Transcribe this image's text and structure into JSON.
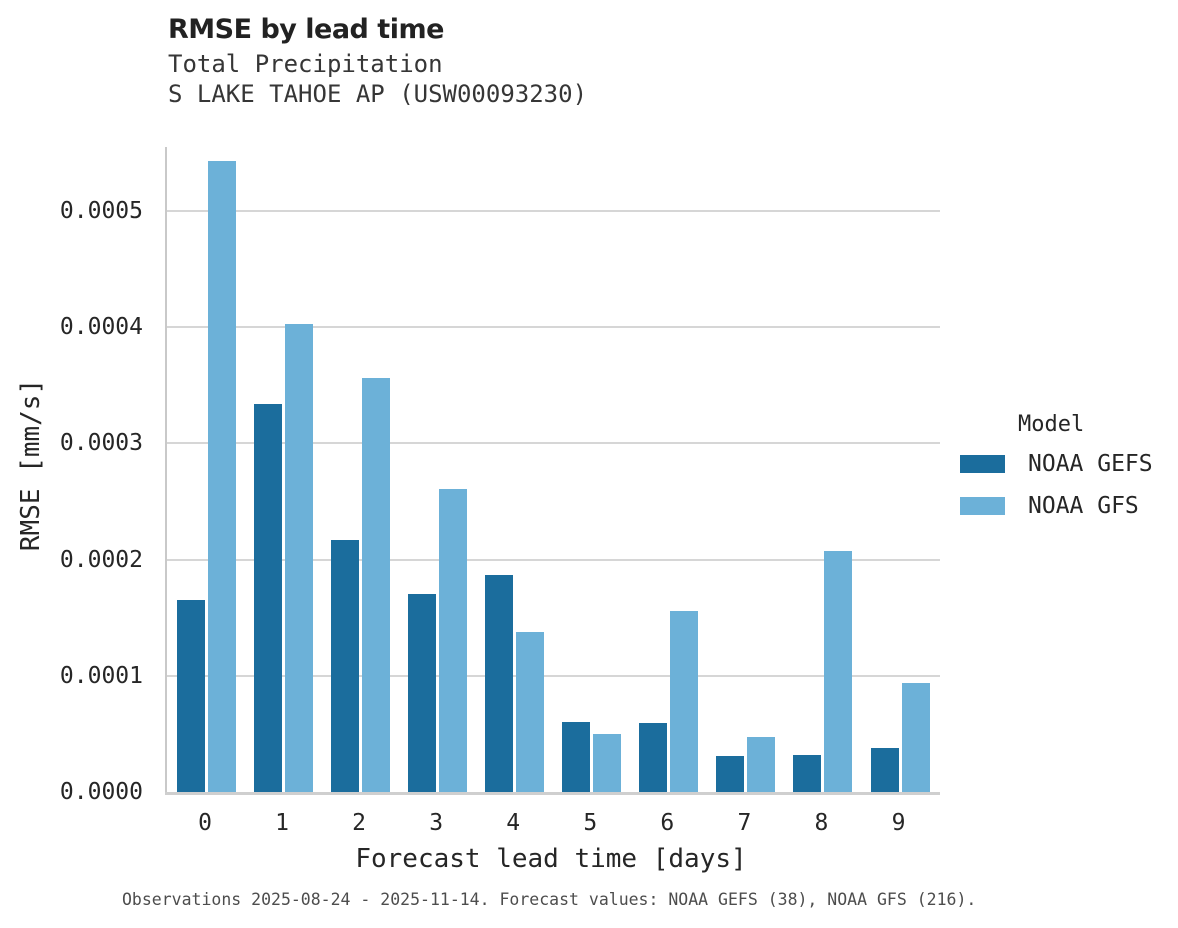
{
  "chart_data": {
    "type": "bar",
    "title": "RMSE by lead time",
    "subtitle_line1": "Total Precipitation",
    "subtitle_line2": "S LAKE TAHOE AP (USW00093230)",
    "xlabel": "Forecast lead time [days]",
    "ylabel": "RMSE [mm/s]",
    "legend_title": "Model",
    "legend_position": "center right",
    "grid": "horizontal",
    "categories": [
      "0",
      "1",
      "2",
      "3",
      "4",
      "5",
      "6",
      "7",
      "8",
      "9"
    ],
    "series": [
      {
        "name": "NOAA GEFS",
        "color": "#1b6d9d",
        "values": [
          0.000165,
          0.000334,
          0.000217,
          0.00017,
          0.000187,
          6e-05,
          5.9e-05,
          3.1e-05,
          3.2e-05,
          3.8e-05
        ]
      },
      {
        "name": "NOAA GFS",
        "color": "#6cb1d8",
        "values": [
          0.000543,
          0.000403,
          0.000356,
          0.000261,
          0.000138,
          5e-05,
          0.000156,
          4.7e-05,
          0.000207,
          9.4e-05
        ]
      }
    ],
    "ylim": [
      0,
      0.000555
    ],
    "yticks": [
      0,
      0.0001,
      0.0002,
      0.0003,
      0.0004,
      0.0005
    ],
    "ytick_labels": [
      "0.0000",
      "0.0001",
      "0.0002",
      "0.0003",
      "0.0004",
      "0.0005"
    ],
    "caption": "Observations 2025-08-24 - 2025-11-14. Forecast values: NOAA GEFS (38), NOAA GFS (216)."
  }
}
